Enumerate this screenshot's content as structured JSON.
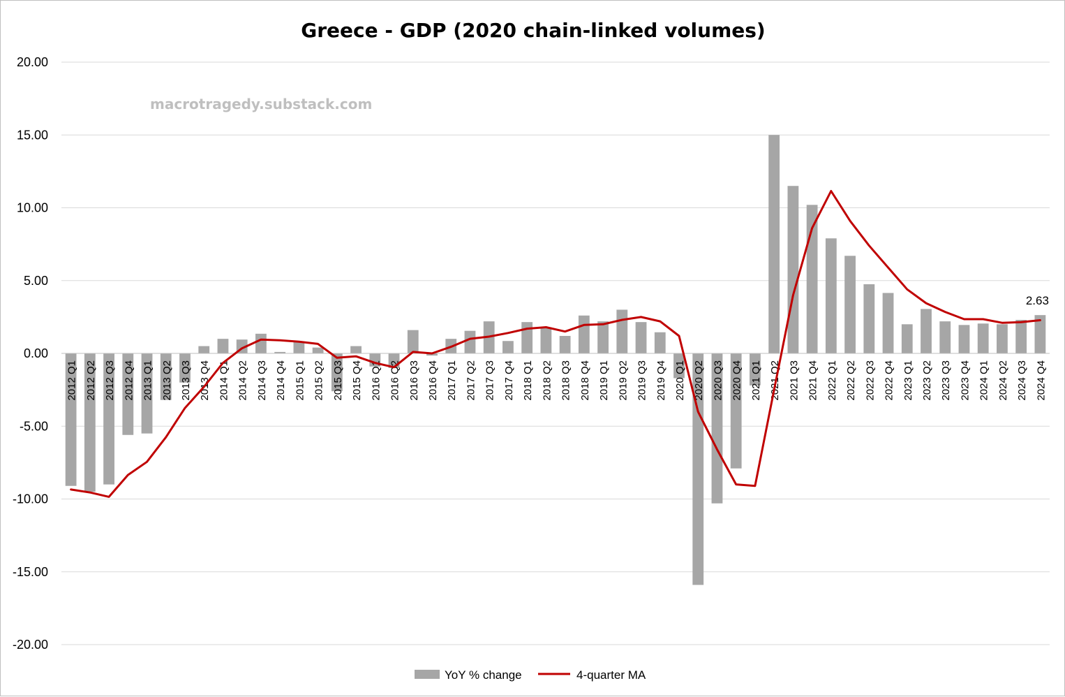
{
  "chart_data": {
    "type": "bar",
    "title": "Greece - GDP (2020 chain-linked volumes)",
    "watermark": "macrotragedy.substack.com",
    "xlabel": "",
    "ylabel": "",
    "ylim": [
      -20,
      20
    ],
    "y_ticks": [
      "20.00",
      "15.00",
      "10.00",
      "5.00",
      "0.00",
      "-5.00",
      "-10.00",
      "-15.00",
      "-20.00"
    ],
    "y_tick_values": [
      20,
      15,
      10,
      5,
      0,
      -5,
      -10,
      -15,
      -20
    ],
    "grid": true,
    "legend_position": "bottom",
    "categories": [
      "2012 Q1",
      "2012 Q2",
      "2012 Q3",
      "2012 Q4",
      "2013 Q1",
      "2013 Q2",
      "2013 Q3",
      "2013 Q4",
      "2014 Q1",
      "2014 Q2",
      "2014 Q3",
      "2014 Q4",
      "2015 Q1",
      "2015 Q2",
      "2015 Q3",
      "2015 Q4",
      "2016 Q1",
      "2016 Q2",
      "2016 Q3",
      "2016 Q4",
      "2017 Q1",
      "2017 Q2",
      "2017 Q3",
      "2017 Q4",
      "2018 Q1",
      "2018 Q2",
      "2018 Q3",
      "2018 Q4",
      "2019 Q1",
      "2019 Q2",
      "2019 Q3",
      "2019 Q4",
      "2020 Q1",
      "2020 Q2",
      "2020 Q3",
      "2020 Q4",
      "2021 Q1",
      "2021 Q2",
      "2021 Q3",
      "2021 Q4",
      "2022 Q1",
      "2022 Q2",
      "2022 Q3",
      "2022 Q4",
      "2023 Q1",
      "2023 Q2",
      "2023 Q3",
      "2023 Q4",
      "2024 Q1",
      "2024 Q2",
      "2024 Q3",
      "2024 Q4"
    ],
    "series": [
      {
        "name": "YoY % change",
        "type": "bar",
        "color": "#a6a6a6",
        "values": [
          -9.1,
          -9.5,
          -9.0,
          -5.6,
          -5.5,
          -3.2,
          -2.0,
          0.5,
          1.0,
          0.95,
          1.35,
          0.1,
          0.8,
          0.4,
          -2.6,
          0.5,
          -0.9,
          -1.0,
          1.6,
          -0.15,
          1.0,
          1.55,
          2.2,
          0.85,
          2.15,
          1.8,
          1.2,
          2.6,
          2.2,
          3.0,
          2.15,
          1.45,
          -1.7,
          -15.9,
          -10.3,
          -7.9,
          -2.2,
          15.0,
          11.5,
          10.2,
          7.9,
          6.7,
          4.75,
          4.15,
          2.0,
          3.05,
          2.2,
          1.95,
          2.05,
          2.0,
          2.3,
          2.63
        ]
      },
      {
        "name": "4-quarter MA",
        "type": "line",
        "color": "#c00000",
        "values": [
          -9.35,
          -9.55,
          -9.85,
          -8.35,
          -7.45,
          -5.75,
          -3.75,
          -2.3,
          -0.65,
          0.35,
          0.95,
          0.9,
          0.8,
          0.65,
          -0.3,
          -0.2,
          -0.65,
          -0.95,
          0.1,
          0.0,
          0.45,
          1.0,
          1.15,
          1.4,
          1.7,
          1.8,
          1.5,
          1.95,
          2.0,
          2.3,
          2.5,
          2.2,
          1.2,
          -4.0,
          -6.6,
          -9.0,
          -9.1,
          -2.5,
          4.0,
          8.6,
          11.15,
          9.1,
          7.4,
          5.9,
          4.4,
          3.45,
          2.85,
          2.35,
          2.35,
          2.1,
          2.15,
          2.28
        ]
      }
    ],
    "annotations": [
      {
        "text": "2.63",
        "series": "YoY % change",
        "category": "2024 Q4"
      }
    ]
  }
}
